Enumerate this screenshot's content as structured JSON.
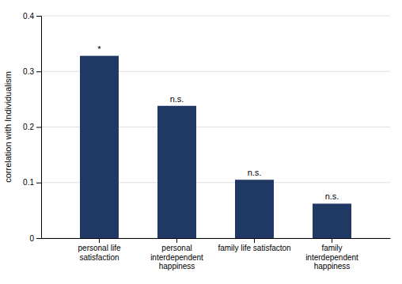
{
  "chart_data": {
    "type": "bar",
    "categories": [
      "personal life\nsatisfaction",
      "personal\ninterdependent\nhappiness",
      "family life satisfacton",
      "family\ninterdependent\nhappiness"
    ],
    "values": [
      0.328,
      0.238,
      0.105,
      0.062
    ],
    "annotations": [
      "*",
      "n.s.",
      "n.s.",
      "n.s."
    ],
    "color": "#1f3864",
    "ylabel": "correlation with Individualism",
    "ylim": [
      0,
      0.4
    ],
    "yticks": [
      0,
      0.1,
      0.2,
      0.3,
      0.4
    ],
    "grid": true
  }
}
